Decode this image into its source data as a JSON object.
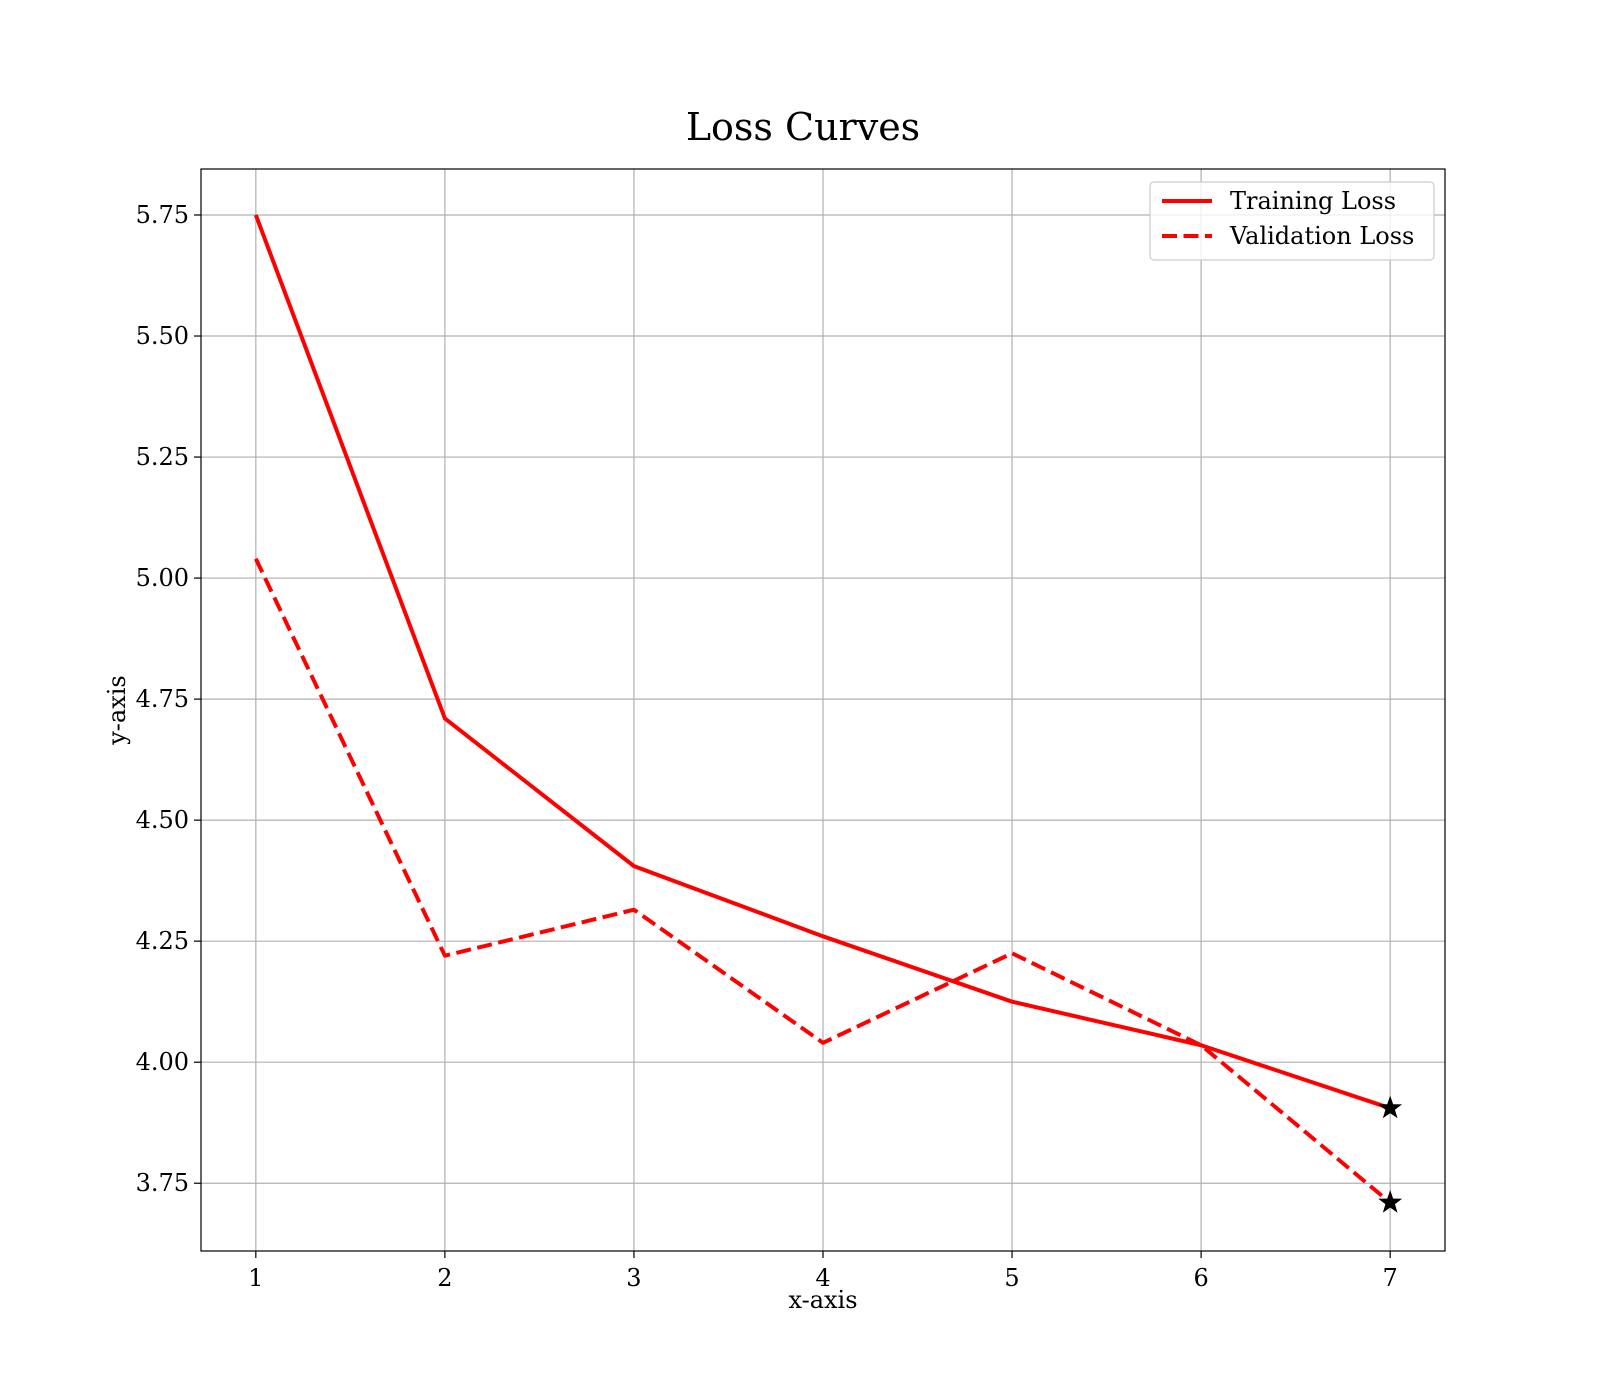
{
  "chart_data": {
    "type": "line",
    "title": "Loss Curves",
    "xlabel": "x-axis",
    "ylabel": "y-axis",
    "x": [
      1,
      2,
      3,
      4,
      5,
      6,
      7
    ],
    "xlim": [
      0.71,
      7.29
    ],
    "ylim": [
      3.61,
      5.845
    ],
    "xticks": [
      1,
      2,
      3,
      4,
      5,
      6,
      7
    ],
    "yticks": [
      3.75,
      4.0,
      4.25,
      4.5,
      4.75,
      5.0,
      5.25,
      5.5,
      5.75
    ],
    "ytick_labels": [
      "3.75",
      "4.00",
      "4.25",
      "4.50",
      "4.75",
      "5.00",
      "5.25",
      "5.50",
      "5.75"
    ],
    "grid": true,
    "legend_position": "top-right",
    "series": [
      {
        "name": "Training Loss",
        "values": [
          5.75,
          4.71,
          4.405,
          4.26,
          4.125,
          4.035,
          3.905
        ],
        "color": "#ff0000",
        "style": "solid",
        "final_marker": "star"
      },
      {
        "name": "Validation Loss",
        "values": [
          5.04,
          4.22,
          4.315,
          4.04,
          4.225,
          4.035,
          3.71
        ],
        "color": "#ff0000",
        "style": "dashed",
        "final_marker": "star"
      }
    ]
  }
}
